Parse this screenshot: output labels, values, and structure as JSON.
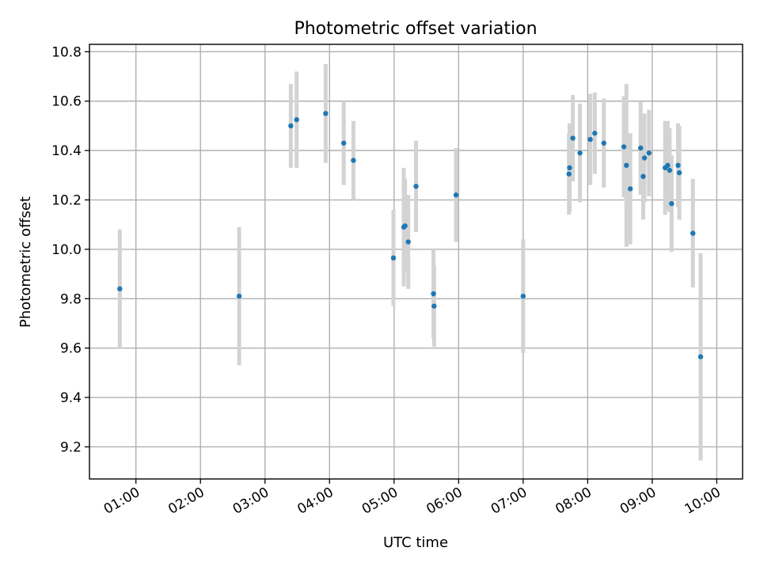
{
  "chart_data": {
    "type": "scatter",
    "title": "Photometric offset variation",
    "xlabel": "UTC time",
    "ylabel": "Photometric offset",
    "x_unit": "hours UTC",
    "xlim": [
      0.28,
      10.4
    ],
    "ylim": [
      9.07,
      10.83
    ],
    "grid": true,
    "x_tick_values": [
      1,
      2,
      3,
      4,
      5,
      6,
      7,
      8,
      9,
      10
    ],
    "x_tick_labels": [
      "01:00",
      "02:00",
      "03:00",
      "04:00",
      "05:00",
      "06:00",
      "07:00",
      "08:00",
      "09:00",
      "10:00"
    ],
    "y_tick_values": [
      9.2,
      9.4,
      9.6,
      9.8,
      10.0,
      10.2,
      10.4,
      10.6,
      10.8
    ],
    "y_tick_labels": [
      "9.2",
      "9.4",
      "9.6",
      "9.8",
      "10.0",
      "10.2",
      "10.4",
      "10.6",
      "10.8"
    ],
    "point_color": "#1f77b4",
    "errorbar_color": "#d3d3d3",
    "series": [
      {
        "points": [
          {
            "x": 0.75,
            "y": 9.84,
            "err": 0.24
          },
          {
            "x": 2.6,
            "y": 9.81,
            "err": 0.28
          },
          {
            "x": 3.4,
            "y": 10.5,
            "err": 0.17
          },
          {
            "x": 3.49,
            "y": 10.525,
            "err": 0.195
          },
          {
            "x": 3.94,
            "y": 10.55,
            "err": 0.2
          },
          {
            "x": 4.22,
            "y": 10.43,
            "err": 0.17
          },
          {
            "x": 4.37,
            "y": 10.36,
            "err": 0.16
          },
          {
            "x": 4.99,
            "y": 9.965,
            "err": 0.195
          },
          {
            "x": 5.15,
            "y": 10.09,
            "err": 0.24
          },
          {
            "x": 5.17,
            "y": 10.095,
            "err": 0.19
          },
          {
            "x": 5.22,
            "y": 10.03,
            "err": 0.19
          },
          {
            "x": 5.34,
            "y": 10.255,
            "err": 0.185
          },
          {
            "x": 5.61,
            "y": 9.82,
            "err": 0.18
          },
          {
            "x": 5.62,
            "y": 9.77,
            "err": 0.165
          },
          {
            "x": 5.96,
            "y": 10.22,
            "err": 0.19
          },
          {
            "x": 7.0,
            "y": 9.81,
            "err": 0.23
          },
          {
            "x": 7.71,
            "y": 10.305,
            "err": 0.165
          },
          {
            "x": 7.72,
            "y": 10.33,
            "err": 0.18
          },
          {
            "x": 7.77,
            "y": 10.45,
            "err": 0.175
          },
          {
            "x": 7.88,
            "y": 10.39,
            "err": 0.2
          },
          {
            "x": 8.04,
            "y": 10.445,
            "err": 0.185
          },
          {
            "x": 8.11,
            "y": 10.47,
            "err": 0.165
          },
          {
            "x": 8.25,
            "y": 10.43,
            "err": 0.18
          },
          {
            "x": 8.56,
            "y": 10.415,
            "err": 0.205
          },
          {
            "x": 8.6,
            "y": 10.34,
            "err": 0.33
          },
          {
            "x": 8.66,
            "y": 10.245,
            "err": 0.225
          },
          {
            "x": 8.82,
            "y": 10.41,
            "err": 0.19
          },
          {
            "x": 8.86,
            "y": 10.295,
            "err": 0.175
          },
          {
            "x": 8.88,
            "y": 10.37,
            "err": 0.18
          },
          {
            "x": 8.95,
            "y": 10.39,
            "err": 0.175
          },
          {
            "x": 9.2,
            "y": 10.33,
            "err": 0.19
          },
          {
            "x": 9.24,
            "y": 10.34,
            "err": 0.18
          },
          {
            "x": 9.27,
            "y": 10.32,
            "err": 0.17
          },
          {
            "x": 9.3,
            "y": 10.185,
            "err": 0.195
          },
          {
            "x": 9.4,
            "y": 10.34,
            "err": 0.17
          },
          {
            "x": 9.42,
            "y": 10.31,
            "err": 0.19
          },
          {
            "x": 9.63,
            "y": 10.065,
            "err": 0.22
          },
          {
            "x": 9.75,
            "y": 9.565,
            "err": 0.42
          }
        ]
      }
    ]
  }
}
